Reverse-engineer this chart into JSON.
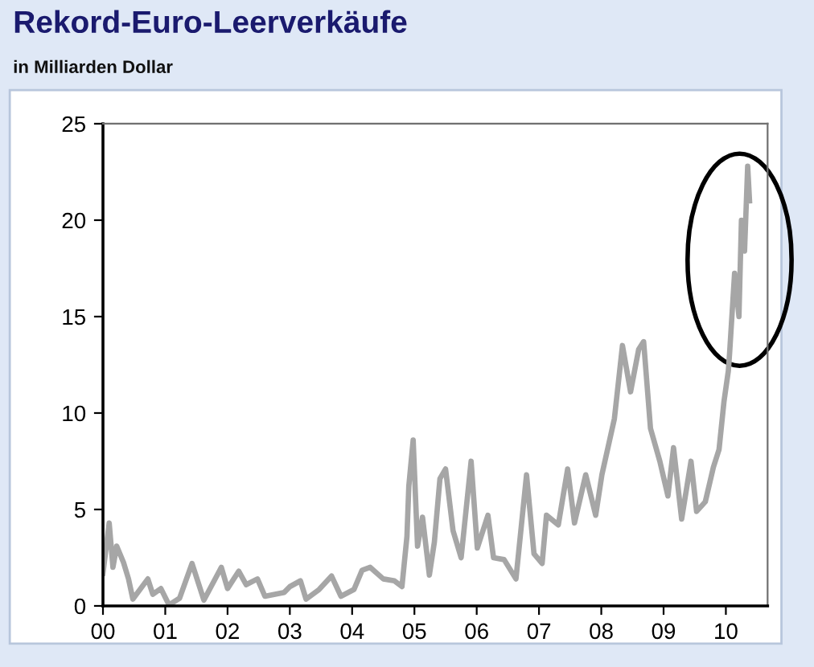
{
  "chart_data": {
    "type": "line",
    "title": "Rekord-Euro-Leerverkäufe",
    "subtitle": "in Milliarden Dollar",
    "x": [
      2000.0,
      2000.1,
      2000.16,
      2000.22,
      2000.33,
      2000.41,
      2000.48,
      2000.72,
      2000.8,
      2000.93,
      2001.06,
      2001.23,
      2001.43,
      2001.62,
      2001.9,
      2002.0,
      2002.18,
      2002.3,
      2002.48,
      2002.6,
      2002.91,
      2003.0,
      2003.17,
      2003.26,
      2003.47,
      2003.67,
      2003.82,
      2004.03,
      2004.16,
      2004.29,
      2004.5,
      2004.68,
      2004.8,
      2004.88,
      2004.91,
      2004.98,
      2005.05,
      2005.13,
      2005.24,
      2005.32,
      2005.41,
      2005.5,
      2005.62,
      2005.75,
      2005.91,
      2006.01,
      2006.18,
      2006.27,
      2006.44,
      2006.63,
      2006.8,
      2006.92,
      2007.05,
      2007.12,
      2007.31,
      2007.46,
      2007.57,
      2007.75,
      2007.91,
      2008.01,
      2008.21,
      2008.34,
      2008.47,
      2008.6,
      2008.68,
      2008.79,
      2008.94,
      2009.07,
      2009.16,
      2009.29,
      2009.44,
      2009.53,
      2009.67,
      2009.8,
      2009.89,
      2009.97,
      2010.04,
      2010.06,
      2010.14,
      2010.21,
      2010.25,
      2010.3,
      2010.35,
      2010.38
    ],
    "series": [
      {
        "color": "#a6a6a6",
        "values": [
          1.7,
          4.3,
          2.0,
          3.1,
          2.25,
          1.4,
          0.35,
          1.4,
          0.6,
          0.9,
          0.05,
          0.4,
          2.2,
          0.3,
          2.0,
          0.9,
          1.8,
          1.1,
          1.4,
          0.5,
          0.7,
          1.0,
          1.3,
          0.35,
          0.85,
          1.55,
          0.5,
          0.85,
          1.85,
          2.0,
          1.4,
          1.3,
          1.0,
          3.6,
          6.2,
          8.6,
          3.1,
          4.6,
          1.6,
          3.3,
          6.6,
          7.1,
          3.9,
          2.5,
          7.5,
          3.0,
          4.7,
          2.5,
          2.4,
          1.4,
          6.8,
          2.7,
          2.2,
          4.7,
          4.2,
          7.1,
          4.3,
          6.8,
          4.7,
          6.8,
          9.7,
          13.5,
          11.1,
          13.3,
          13.7,
          9.2,
          7.5,
          5.7,
          8.2,
          4.5,
          7.5,
          4.9,
          5.4,
          7.2,
          8.1,
          10.6,
          12.2,
          13.1,
          17.25,
          15.0,
          20.0,
          18.4,
          22.8,
          21.0
        ]
      }
    ],
    "xlim": [
      2000,
      2010.67
    ],
    "xticks": [
      {
        "value": 2000,
        "label": "00"
      },
      {
        "value": 2001,
        "label": "01"
      },
      {
        "value": 2002,
        "label": "02"
      },
      {
        "value": 2003,
        "label": "03"
      },
      {
        "value": 2004,
        "label": "04"
      },
      {
        "value": 2005,
        "label": "05"
      },
      {
        "value": 2006,
        "label": "06"
      },
      {
        "value": 2007,
        "label": "07"
      },
      {
        "value": 2008,
        "label": "08"
      },
      {
        "value": 2009,
        "label": "09"
      },
      {
        "value": 2010,
        "label": "10"
      }
    ],
    "ylim": [
      0,
      25
    ],
    "yticks": [
      0,
      5,
      10,
      15,
      20,
      25
    ],
    "grid": false,
    "legend": false,
    "marker": "none",
    "line_style": "solid"
  }
}
